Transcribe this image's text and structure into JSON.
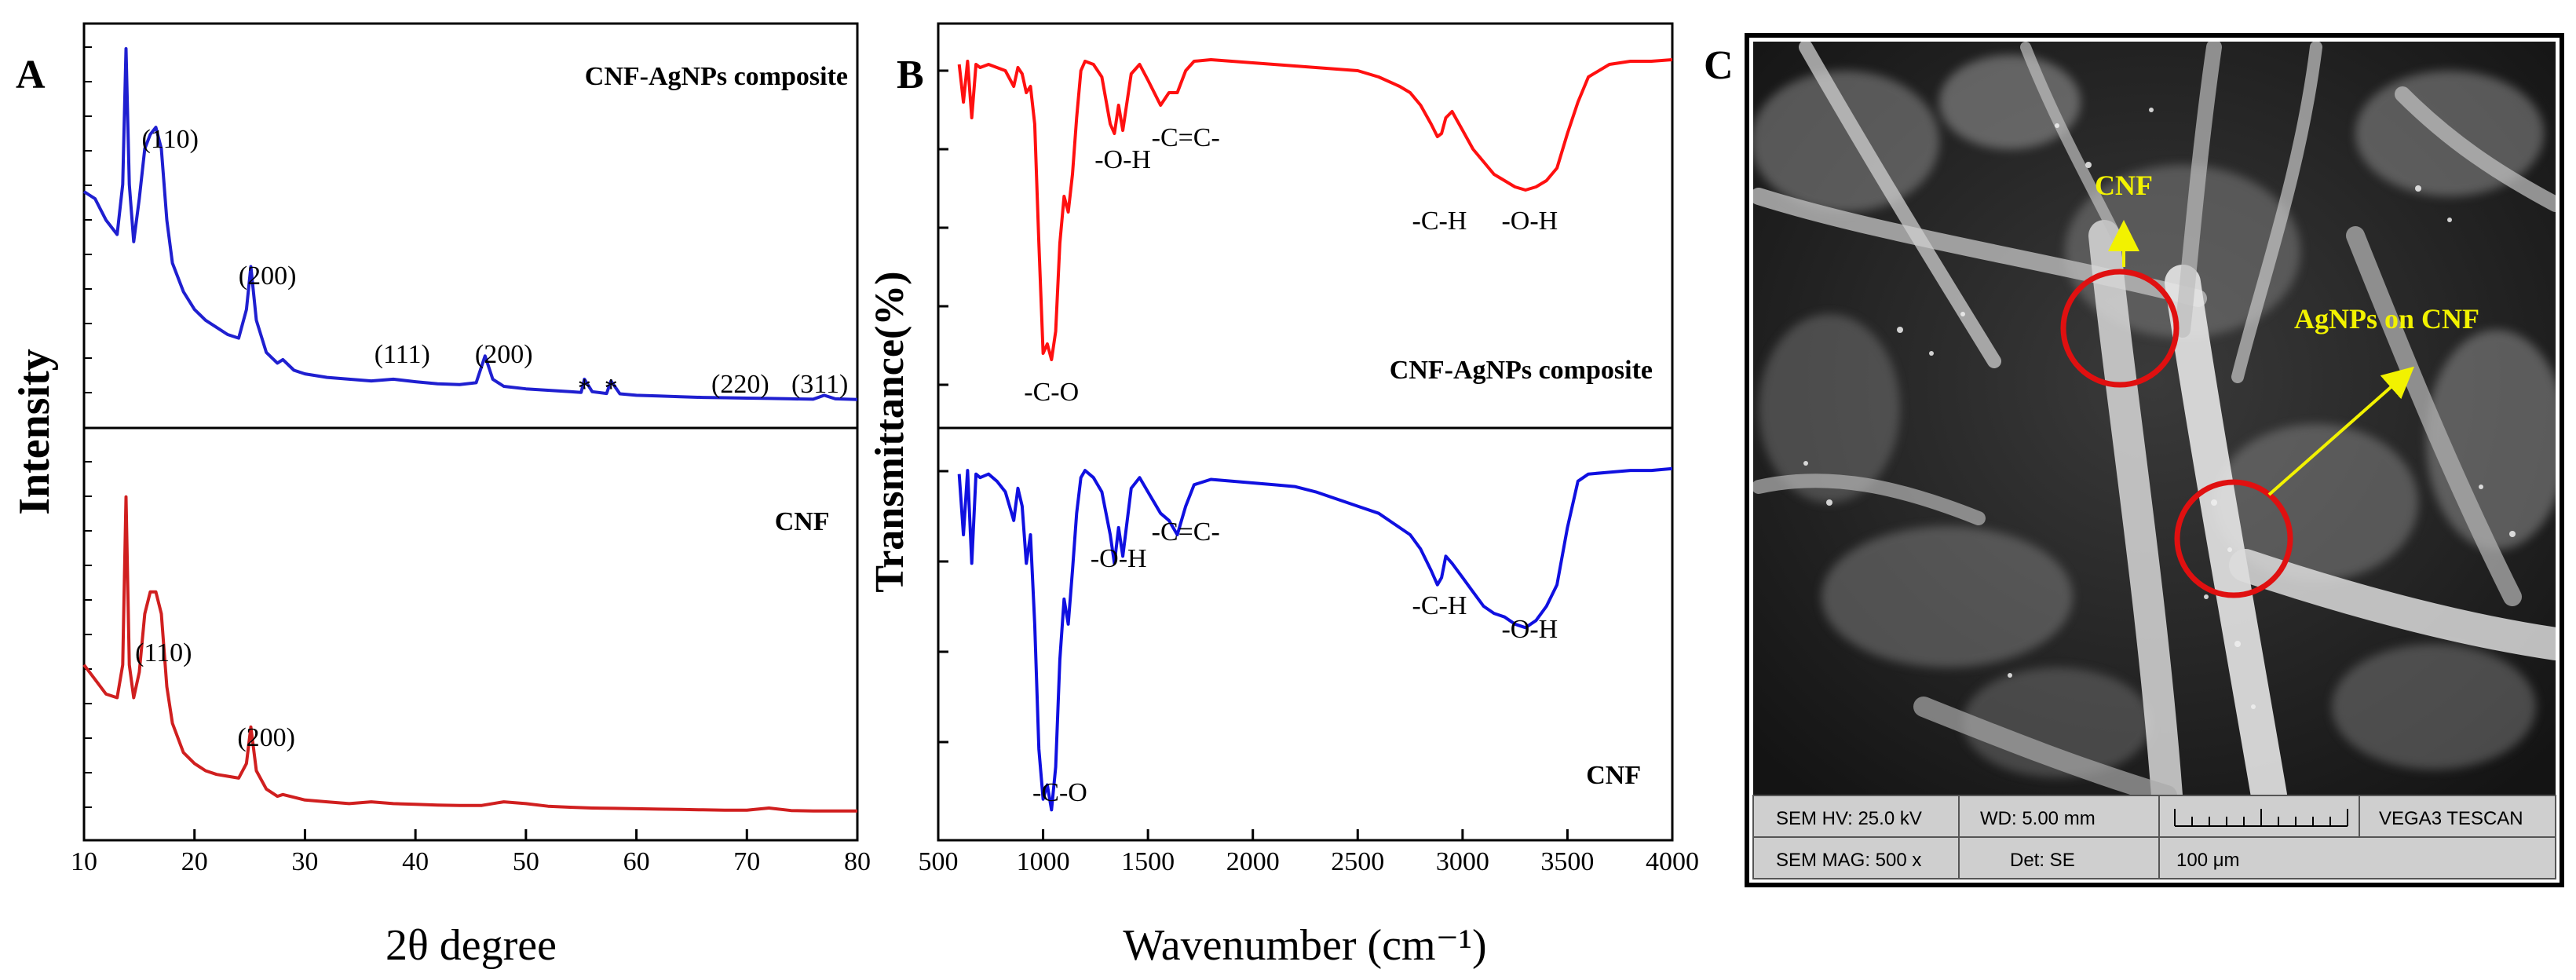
{
  "chart_data": [
    {
      "panel": "A",
      "type": "line",
      "title": "",
      "xlabel": "2θ degree",
      "ylabel": "Intensity",
      "xlim": [
        10,
        80
      ],
      "x_ticks": [
        "10",
        "20",
        "30",
        "40",
        "50",
        "60",
        "70",
        "80"
      ],
      "series": [
        {
          "name": "CNF-AgNPs composite",
          "color": "#1f1fd0",
          "x": [
            10,
            11,
            12,
            13,
            13.5,
            13.8,
            14.1,
            14.5,
            15,
            15.5,
            16,
            16.5,
            17,
            17.5,
            18,
            19,
            20,
            21,
            22,
            23,
            24,
            24.7,
            25.1,
            25.6,
            26.5,
            27.5,
            28,
            29,
            30,
            32,
            34,
            36,
            38,
            40,
            42,
            44,
            45.5,
            46.3,
            47,
            48,
            50,
            52,
            54,
            55,
            55.3,
            56,
            57.3,
            57.7,
            58.5,
            60,
            62,
            64,
            66,
            68,
            70,
            72,
            74,
            76,
            77,
            78,
            80
          ],
          "y": [
            0.6,
            0.58,
            0.52,
            0.48,
            0.62,
            1.0,
            0.62,
            0.46,
            0.58,
            0.72,
            0.76,
            0.78,
            0.72,
            0.52,
            0.4,
            0.32,
            0.27,
            0.24,
            0.22,
            0.2,
            0.19,
            0.27,
            0.39,
            0.24,
            0.15,
            0.12,
            0.13,
            0.1,
            0.09,
            0.08,
            0.075,
            0.07,
            0.075,
            0.068,
            0.062,
            0.06,
            0.065,
            0.14,
            0.075,
            0.055,
            0.048,
            0.044,
            0.04,
            0.038,
            0.075,
            0.04,
            0.035,
            0.07,
            0.034,
            0.03,
            0.028,
            0.026,
            0.024,
            0.023,
            0.022,
            0.021,
            0.02,
            0.019,
            0.03,
            0.02,
            0.018
          ]
        },
        {
          "name": "CNF",
          "color": "#d01f1f",
          "x": [
            10,
            11,
            12,
            13,
            13.5,
            13.8,
            14.1,
            14.5,
            15,
            15.5,
            16,
            16.5,
            17,
            17.5,
            18,
            19,
            20,
            21,
            22,
            23,
            24,
            24.7,
            25.1,
            25.6,
            26.5,
            27.5,
            28,
            30,
            32,
            34,
            36,
            38,
            40,
            42,
            44,
            46,
            48,
            50,
            52,
            54,
            56,
            58,
            60,
            62,
            64,
            66,
            68,
            70,
            72,
            74,
            76,
            78,
            80
          ],
          "y": [
            0.42,
            0.38,
            0.34,
            0.33,
            0.42,
            0.88,
            0.42,
            0.33,
            0.4,
            0.56,
            0.62,
            0.62,
            0.56,
            0.36,
            0.26,
            0.18,
            0.15,
            0.13,
            0.12,
            0.115,
            0.11,
            0.15,
            0.25,
            0.13,
            0.08,
            0.06,
            0.065,
            0.05,
            0.045,
            0.04,
            0.045,
            0.04,
            0.038,
            0.036,
            0.035,
            0.035,
            0.045,
            0.04,
            0.033,
            0.03,
            0.028,
            0.027,
            0.026,
            0.025,
            0.024,
            0.023,
            0.022,
            0.022,
            0.028,
            0.021,
            0.02,
            0.02,
            0.02
          ]
        }
      ],
      "annotations_top": [
        {
          "text": "CNF-AgNPs composite",
          "x": 77
        },
        {
          "text": "(110)",
          "x": 17.8
        },
        {
          "text": "(200)",
          "x": 26.6
        },
        {
          "text": "(111)",
          "x": 38.8
        },
        {
          "text": "(200)",
          "x": 48.0
        },
        {
          "text": "*",
          "x": 55.3
        },
        {
          "text": "*",
          "x": 57.7
        },
        {
          "text": "(220)",
          "x": 69.4
        },
        {
          "text": "(311)",
          "x": 76.6
        }
      ],
      "annotations_bottom": [
        {
          "text": "CNF",
          "x": 75
        },
        {
          "text": "(110)",
          "x": 17.2
        },
        {
          "text": "(200)",
          "x": 26.5
        }
      ]
    },
    {
      "panel": "B",
      "type": "line",
      "title": "",
      "xlabel": "Wavenumber (cm⁻¹)",
      "ylabel": "Transmittance(%)",
      "xlim": [
        500,
        4000
      ],
      "x_ticks": [
        "500",
        "1000",
        "1500",
        "2000",
        "2500",
        "3000",
        "3500",
        "4000"
      ],
      "series": [
        {
          "name": "CNF-AgNPs composite",
          "color": "#ff1010",
          "x": [
            600,
            620,
            640,
            660,
            680,
            700,
            740,
            780,
            820,
            860,
            880,
            900,
            920,
            940,
            960,
            980,
            1000,
            1020,
            1040,
            1060,
            1080,
            1100,
            1120,
            1140,
            1160,
            1180,
            1200,
            1240,
            1280,
            1320,
            1340,
            1360,
            1380,
            1420,
            1460,
            1500,
            1560,
            1600,
            1640,
            1680,
            1720,
            1800,
            1900,
            2000,
            2100,
            2200,
            2300,
            2400,
            2500,
            2600,
            2700,
            2750,
            2800,
            2850,
            2880,
            2900,
            2920,
            2950,
            3000,
            3050,
            3100,
            3150,
            3200,
            3250,
            3300,
            3350,
            3400,
            3450,
            3500,
            3550,
            3600,
            3700,
            3800,
            3900,
            4000
          ],
          "y": [
            0.97,
            0.85,
            0.98,
            0.8,
            0.97,
            0.96,
            0.97,
            0.96,
            0.95,
            0.9,
            0.96,
            0.94,
            0.88,
            0.9,
            0.78,
            0.4,
            0.05,
            0.08,
            0.03,
            0.12,
            0.4,
            0.55,
            0.5,
            0.62,
            0.8,
            0.95,
            0.98,
            0.97,
            0.93,
            0.78,
            0.75,
            0.84,
            0.76,
            0.94,
            0.97,
            0.92,
            0.84,
            0.88,
            0.88,
            0.95,
            0.98,
            0.985,
            0.98,
            0.975,
            0.97,
            0.965,
            0.96,
            0.955,
            0.95,
            0.93,
            0.9,
            0.88,
            0.84,
            0.78,
            0.74,
            0.75,
            0.8,
            0.82,
            0.76,
            0.7,
            0.66,
            0.62,
            0.6,
            0.58,
            0.57,
            0.58,
            0.6,
            0.64,
            0.75,
            0.85,
            0.93,
            0.97,
            0.98,
            0.98,
            0.985
          ]
        },
        {
          "name": "CNF",
          "color": "#1010e0",
          "x": [
            600,
            620,
            640,
            660,
            680,
            700,
            740,
            780,
            820,
            860,
            880,
            900,
            920,
            940,
            960,
            980,
            1000,
            1020,
            1040,
            1060,
            1080,
            1100,
            1120,
            1140,
            1160,
            1180,
            1200,
            1240,
            1280,
            1320,
            1340,
            1360,
            1380,
            1420,
            1460,
            1500,
            1560,
            1600,
            1640,
            1680,
            1720,
            1800,
            1900,
            2000,
            2100,
            2200,
            2300,
            2400,
            2500,
            2600,
            2700,
            2750,
            2800,
            2850,
            2880,
            2900,
            2920,
            2950,
            3000,
            3050,
            3100,
            3150,
            3200,
            3250,
            3300,
            3350,
            3400,
            3450,
            3500,
            3550,
            3600,
            3700,
            3800,
            3900,
            4000
          ],
          "y": [
            0.97,
            0.8,
            0.98,
            0.72,
            0.97,
            0.96,
            0.97,
            0.95,
            0.92,
            0.84,
            0.93,
            0.88,
            0.72,
            0.8,
            0.55,
            0.2,
            0.06,
            0.1,
            0.03,
            0.15,
            0.45,
            0.62,
            0.55,
            0.7,
            0.86,
            0.96,
            0.98,
            0.96,
            0.92,
            0.8,
            0.72,
            0.82,
            0.74,
            0.93,
            0.96,
            0.92,
            0.86,
            0.84,
            0.8,
            0.88,
            0.94,
            0.955,
            0.95,
            0.945,
            0.94,
            0.935,
            0.92,
            0.9,
            0.88,
            0.86,
            0.82,
            0.8,
            0.76,
            0.7,
            0.66,
            0.68,
            0.74,
            0.72,
            0.68,
            0.64,
            0.6,
            0.58,
            0.57,
            0.55,
            0.54,
            0.56,
            0.6,
            0.66,
            0.82,
            0.95,
            0.97,
            0.975,
            0.98,
            0.98,
            0.985
          ]
        }
      ],
      "annotations_top": [
        {
          "text": "-O-H",
          "x": 1380
        },
        {
          "text": "-C=C-",
          "x": 1680
        },
        {
          "text": "-C-H",
          "x": 2890
        },
        {
          "text": "-O-H",
          "x": 3320
        },
        {
          "text": "-C-O",
          "x": 1040
        },
        {
          "text": "CNF-AgNPs composite",
          "x": 3560
        }
      ],
      "annotations_bottom": [
        {
          "text": "-O-H",
          "x": 1360
        },
        {
          "text": "-C=C-",
          "x": 1680
        },
        {
          "text": "-C-H",
          "x": 2890
        },
        {
          "text": "-O-H",
          "x": 3320
        },
        {
          "text": "-C-O",
          "x": 1080
        },
        {
          "text": "CNF",
          "x": 3720
        }
      ]
    }
  ],
  "panel_labels": {
    "a": "A",
    "b": "B",
    "c": "C"
  },
  "sem": {
    "label_cnf": "CNF",
    "label_agnps": "AgNPs on CNF",
    "info": {
      "hv": "SEM HV: 25.0 kV",
      "wd": "WD: 5.00 mm",
      "brand": "VEGA3 TESCAN",
      "mag": "SEM MAG: 500 x",
      "det": "Det: SE",
      "scale": "100 μm"
    },
    "colors": {
      "circle": "#e01010",
      "arrow": "#f2f200",
      "label": "#f2f200"
    }
  }
}
